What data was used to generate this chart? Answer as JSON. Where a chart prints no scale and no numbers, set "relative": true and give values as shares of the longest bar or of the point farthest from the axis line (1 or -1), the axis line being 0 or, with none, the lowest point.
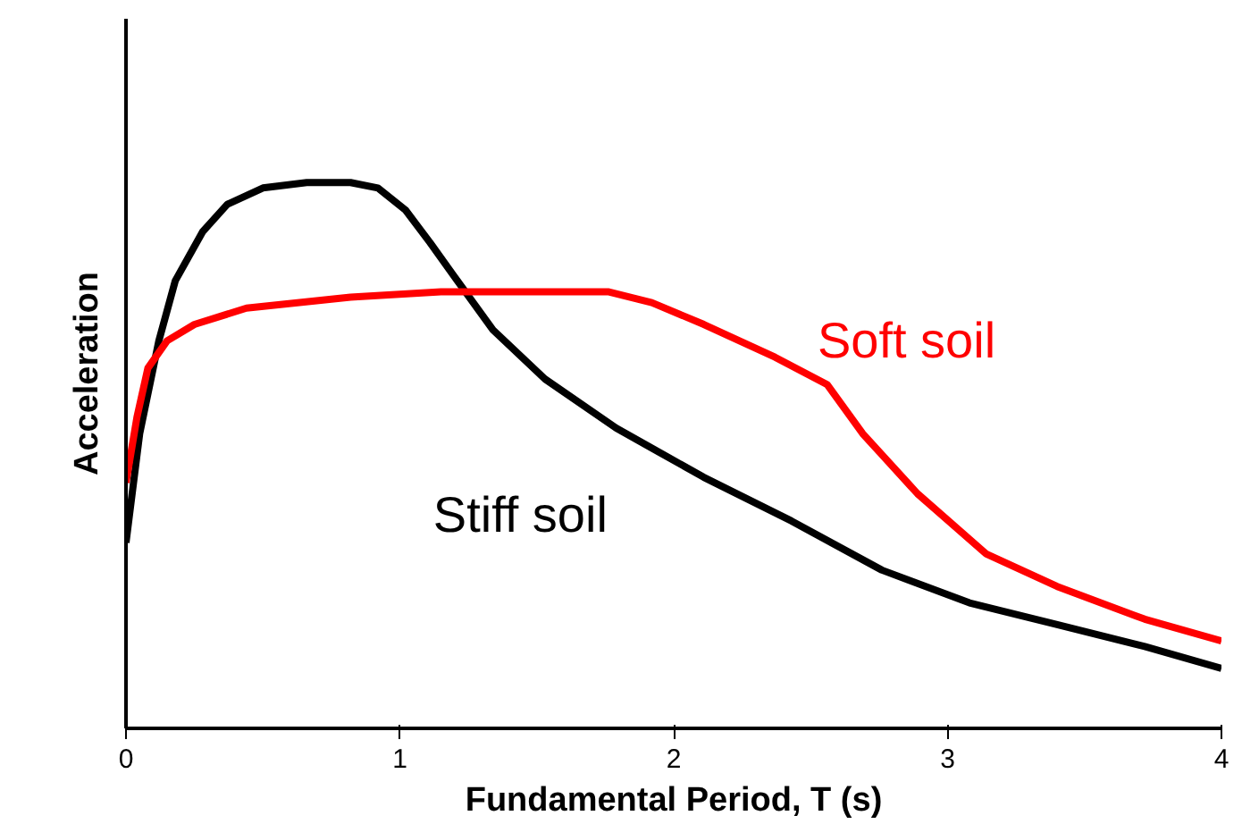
{
  "chart_data": {
    "type": "line",
    "xlabel": "Fundamental Period, T (s)",
    "ylabel": "Acceleration",
    "relative": true,
    "xlim": [
      0,
      4
    ],
    "xticks": [
      0,
      1,
      2,
      3,
      4
    ],
    "grid": false,
    "marker": "none",
    "line_style": "solid",
    "series": [
      {
        "name": "Stiff soil",
        "color": "#000000",
        "x": [
          0,
          0.05,
          0.12,
          0.18,
          0.28,
          0.37,
          0.5,
          0.66,
          0.82,
          0.92,
          1.02,
          1.11,
          1.21,
          1.34,
          1.53,
          1.79,
          2.11,
          2.43,
          2.76,
          3.08,
          3.4,
          3.72,
          4.0
        ],
        "values": [
          0.34,
          0.54,
          0.71,
          0.82,
          0.91,
          0.96,
          0.99,
          1,
          1,
          0.99,
          0.95,
          0.89,
          0.82,
          0.73,
          0.64,
          0.55,
          0.46,
          0.38,
          0.29,
          0.23,
          0.19,
          0.15,
          0.11
        ]
      },
      {
        "name": "Soft soil",
        "color": "#ff0000",
        "x": [
          0,
          0.04,
          0.08,
          0.15,
          0.25,
          0.44,
          0.82,
          1.15,
          1.47,
          1.76,
          1.92,
          2.11,
          2.37,
          2.56,
          2.69,
          2.89,
          3.14,
          3.4,
          3.72,
          4.0
        ],
        "values": [
          0.45,
          0.57,
          0.66,
          0.71,
          0.74,
          0.77,
          0.79,
          0.8,
          0.8,
          0.8,
          0.78,
          0.74,
          0.68,
          0.63,
          0.54,
          0.43,
          0.32,
          0.26,
          0.2,
          0.16
        ]
      }
    ]
  }
}
